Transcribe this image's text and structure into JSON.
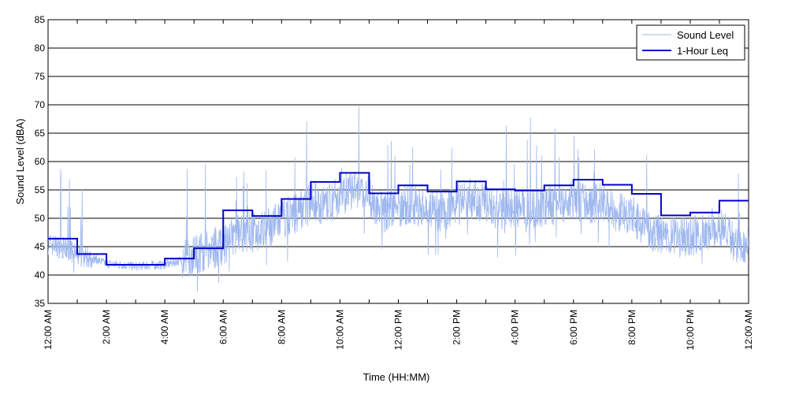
{
  "chart_data": {
    "type": "line",
    "xlabel": "Time (HH:MM)",
    "ylabel": "Sound Level (dBA)",
    "xlim": [
      0,
      24
    ],
    "ylim": [
      35,
      85
    ],
    "grid": true,
    "legend_position": "top-right",
    "x_tick_labels": [
      "12:00 AM",
      "2:00 AM",
      "4:00 AM",
      "6:00 AM",
      "8:00 AM",
      "10:00 AM",
      "12:00 PM",
      "2:00 PM",
      "4:00 PM",
      "6:00 PM",
      "8:00 PM",
      "10:00 PM",
      "12:00 AM"
    ],
    "y_tick_labels": [
      "35",
      "40",
      "45",
      "50",
      "55",
      "60",
      "65",
      "70",
      "75",
      "80",
      "85"
    ],
    "series": [
      {
        "name": "Sound Level",
        "color": "#9fb8ef",
        "style": "thin-noisy-line",
        "x": [
          0,
          0.5,
          1,
          1.5,
          2,
          2.5,
          3,
          3.5,
          4,
          4.5,
          5,
          5.5,
          6,
          6.5,
          7,
          7.5,
          8,
          8.5,
          9,
          9.5,
          10,
          10.5,
          11,
          11.5,
          12,
          12.5,
          13,
          13.5,
          14,
          14.5,
          15,
          15.5,
          16,
          16.5,
          17,
          17.5,
          18,
          18.5,
          19,
          19.5,
          20,
          20.5,
          21,
          21.5,
          22,
          22.5,
          23,
          23.5,
          24
        ],
        "values": [
          45.5,
          44.8,
          43.5,
          43,
          42,
          41.8,
          41.5,
          41.7,
          41.8,
          42.5,
          43.5,
          44.5,
          45,
          47.5,
          47.5,
          48,
          50,
          51,
          53,
          52,
          54,
          55,
          53.5,
          51,
          52,
          52.5,
          51.5,
          51,
          53,
          53.5,
          52.5,
          51.5,
          52,
          51.5,
          52,
          52.5,
          53,
          52.5,
          53,
          51,
          50.5,
          48,
          47,
          46.5,
          47,
          47.5,
          49,
          46,
          45
        ]
      },
      {
        "name": "1-Hour Leq",
        "color": "#0000cc",
        "style": "step",
        "x": [
          0,
          1,
          2,
          3,
          4,
          5,
          6,
          7,
          8,
          9,
          10,
          11,
          12,
          13,
          14,
          15,
          16,
          17,
          18,
          19,
          20,
          21,
          22,
          23,
          24
        ],
        "values": [
          46.4,
          43.7,
          41.8,
          41.8,
          42.9,
          44.7,
          51.4,
          50.4,
          53.4,
          56.4,
          58.0,
          54.4,
          55.8,
          54.7,
          56.5,
          55.1,
          54.9,
          55.8,
          56.8,
          55.9,
          54.3,
          50.5,
          51.0,
          53.1,
          53.1
        ]
      }
    ]
  }
}
